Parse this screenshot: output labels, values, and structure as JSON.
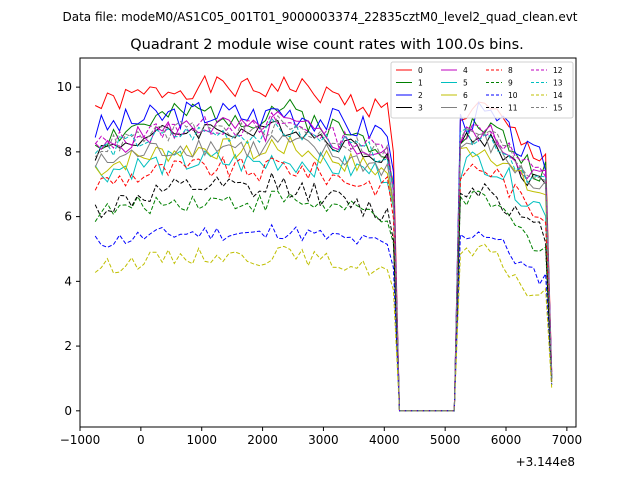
{
  "chart_data": {
    "type": "line",
    "suptitle": "Data file: modeM0/AS1C05_001T01_9000003374_22835cztM0_level2_quad_clean.evt",
    "title": "Quadrant 2 module wise count rates with 100.0s bins.",
    "xlabel": "",
    "ylabel": "",
    "x_offset_label": "+3.144e8",
    "xlim": [
      -1000,
      7150
    ],
    "ylim": [
      -0.5,
      10.9
    ],
    "xticks": [
      -1000,
      0,
      1000,
      2000,
      3000,
      4000,
      5000,
      6000,
      7000
    ],
    "xtick_labels": [
      "−1000",
      "0",
      "1000",
      "2000",
      "3000",
      "4000",
      "5000",
      "6000",
      "7000"
    ],
    "yticks": [
      0,
      2,
      4,
      6,
      8,
      10
    ],
    "ytick_labels": [
      "0",
      "2",
      "4",
      "6",
      "8",
      "10"
    ],
    "legend_location": "upper right",
    "x_start": -750,
    "x_step": 100,
    "n_points": 76,
    "gap_start_index": 50,
    "gap_end_index": 59,
    "drop_index": 75,
    "series": [
      {
        "name": "0",
        "color": "#ff0000",
        "dashed": false,
        "base": 9.4,
        "amp": 0.35,
        "trend": 0.6,
        "seed": 1,
        "recovery": 9.0,
        "final": 1.2
      },
      {
        "name": "1",
        "color": "#008000",
        "dashed": false,
        "base": 8.3,
        "amp": 0.4,
        "trend": 0.9,
        "seed": 2,
        "recovery": 8.5,
        "final": 1.0
      },
      {
        "name": "2",
        "color": "#0000ff",
        "dashed": false,
        "base": 8.7,
        "amp": 0.45,
        "trend": 0.5,
        "seed": 3,
        "recovery": 8.8,
        "final": 1.1
      },
      {
        "name": "3",
        "color": "#000000",
        "dashed": false,
        "base": 8.0,
        "amp": 0.3,
        "trend": 0.7,
        "seed": 4,
        "recovery": 8.1,
        "final": 1.0
      },
      {
        "name": "4",
        "color": "#bf00bf",
        "dashed": false,
        "base": 8.0,
        "amp": 0.35,
        "trend": 0.8,
        "seed": 5,
        "recovery": 8.3,
        "final": 1.2
      },
      {
        "name": "5",
        "color": "#00bfbf",
        "dashed": false,
        "base": 7.4,
        "amp": 0.4,
        "trend": 0.3,
        "seed": 6,
        "recovery": 7.4,
        "final": 1.0
      },
      {
        "name": "6",
        "color": "#bfbf00",
        "dashed": false,
        "base": 7.5,
        "amp": 0.35,
        "trend": 0.6,
        "seed": 7,
        "recovery": 7.8,
        "final": 0.9
      },
      {
        "name": "7",
        "color": "#808080",
        "dashed": false,
        "base": 7.6,
        "amp": 0.35,
        "trend": 0.6,
        "seed": 8,
        "recovery": 8.0,
        "final": 1.0
      },
      {
        "name": "8",
        "color": "#ff0000",
        "dashed": true,
        "base": 7.0,
        "amp": 0.35,
        "trend": 0.5,
        "seed": 9,
        "recovery": 7.2,
        "final": 0.9
      },
      {
        "name": "9",
        "color": "#008000",
        "dashed": true,
        "base": 6.1,
        "amp": 0.3,
        "trend": 0.4,
        "seed": 10,
        "recovery": 6.2,
        "final": 0.8
      },
      {
        "name": "10",
        "color": "#0000ff",
        "dashed": true,
        "base": 5.2,
        "amp": 0.25,
        "trend": 0.3,
        "seed": 11,
        "recovery": 5.2,
        "final": 0.8
      },
      {
        "name": "11",
        "color": "#000000",
        "dashed": true,
        "base": 6.2,
        "amp": 0.35,
        "trend": 0.7,
        "seed": 12,
        "recovery": 6.6,
        "final": 0.9
      },
      {
        "name": "12",
        "color": "#bf00bf",
        "dashed": true,
        "base": 8.2,
        "amp": 0.3,
        "trend": 0.6,
        "seed": 13,
        "recovery": 8.4,
        "final": 1.0
      },
      {
        "name": "13",
        "color": "#00bfbf",
        "dashed": true,
        "base": 8.0,
        "amp": 0.3,
        "trend": 0.6,
        "seed": 14,
        "recovery": 8.2,
        "final": 1.0
      },
      {
        "name": "14",
        "color": "#bfbf00",
        "dashed": true,
        "base": 4.4,
        "amp": 0.25,
        "trend": 0.4,
        "seed": 15,
        "recovery": 4.6,
        "final": 0.7
      },
      {
        "name": "15",
        "color": "#808080",
        "dashed": true,
        "base": 8.1,
        "amp": 0.3,
        "trend": 0.6,
        "seed": 16,
        "recovery": 8.3,
        "final": 1.0
      }
    ]
  }
}
